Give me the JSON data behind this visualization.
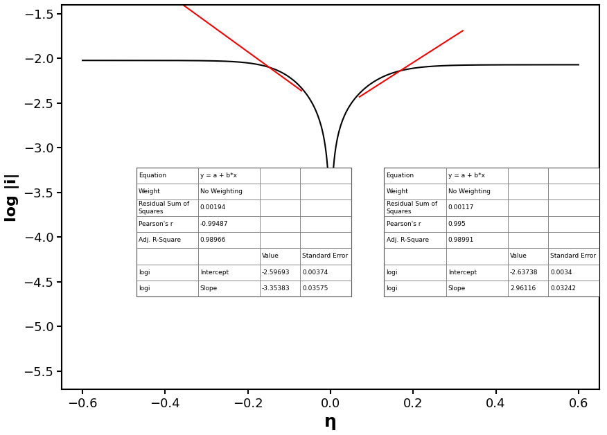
{
  "xlim": [
    -0.65,
    0.65
  ],
  "ylim": [
    -5.7,
    -1.4
  ],
  "xlabel": "η",
  "ylabel": "log |i|",
  "xticks": [
    -0.6,
    -0.4,
    -0.2,
    0.0,
    0.2,
    0.4,
    0.6
  ],
  "yticks": [
    -5.5,
    -5.0,
    -4.5,
    -4.0,
    -3.5,
    -3.0,
    -2.5,
    -2.0,
    -1.5
  ],
  "left_fit": {
    "intercept": -2.59693,
    "slope": -3.35383,
    "x_start": -0.43,
    "x_end": -0.07
  },
  "right_fit": {
    "intercept": -2.63738,
    "slope": 2.96116,
    "x_start": 0.07,
    "x_end": 0.32
  },
  "left_table": {
    "equation": "y = a + b*x",
    "weight": "No Weighting",
    "residual_sum_sq": "0.00194",
    "pearsons_r": "-0.99487",
    "adj_r_square": "0.98966",
    "intercept_value": "-2.59693",
    "intercept_se": "0.00374",
    "slope_value": "-3.35383",
    "slope_se": "0.03575"
  },
  "right_table": {
    "equation": "y = a + b*x",
    "weight": "No Weighting",
    "residual_sum_sq": "0.00117",
    "pearsons_r": "0.995",
    "adj_r_square": "0.98991",
    "intercept_value": "-2.63738",
    "intercept_se": "0.0034",
    "slope_value": "2.96116",
    "slope_se": "0.03242"
  },
  "curve_color": "#000000",
  "fit_color": "#FF0000",
  "background_color": "#ffffff"
}
